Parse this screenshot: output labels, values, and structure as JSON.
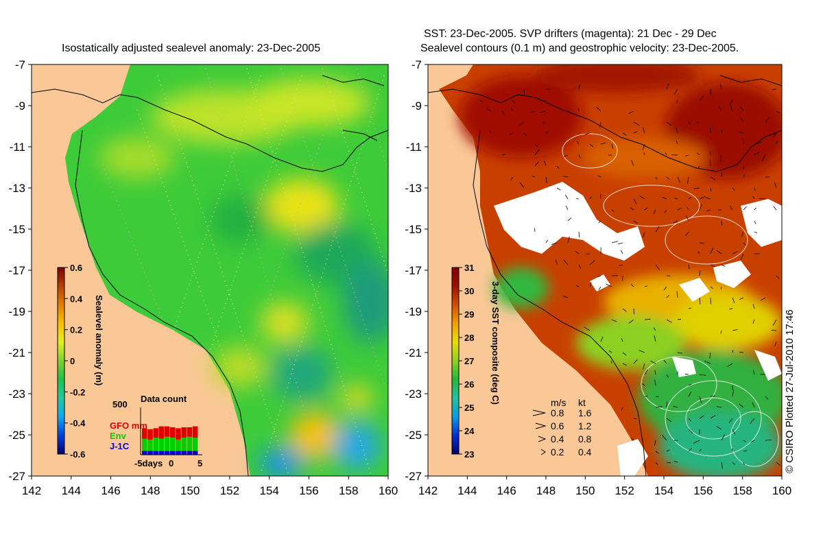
{
  "left_panel": {
    "title": "Isostatically adjusted sealevel anomaly: 23-Dec-2005",
    "colorbar": {
      "label": "Sealevel anomaly (m)",
      "min": -0.6,
      "max": 0.6,
      "ticks": [
        "0.6",
        "0.4",
        "0.2",
        "0",
        "-0.2",
        "-0.4",
        "-0.6"
      ],
      "tick_values": [
        0.6,
        0.4,
        0.2,
        0,
        -0.2,
        -0.4,
        -0.6
      ],
      "colors": [
        "#00006e",
        "#0040e0",
        "#10a8f0",
        "#20c8a0",
        "#1ec24a",
        "#80d030",
        "#e0f020",
        "#f8c000",
        "#e08000",
        "#b84000",
        "#7a0000"
      ]
    },
    "data_count": {
      "title": "Data count",
      "ymax_label": "500",
      "legend": [
        {
          "name": "GFO mm",
          "color": "#e00000"
        },
        {
          "name": "Env",
          "color": "#00d000"
        },
        {
          "name": "J-1C",
          "color": "#0000e0"
        }
      ],
      "x_labels": [
        "-5days",
        "0",
        "5"
      ],
      "bars": [
        {
          "j1c": 40,
          "env": 130,
          "gfo": 110
        },
        {
          "j1c": 40,
          "env": 120,
          "gfo": 110
        },
        {
          "j1c": 40,
          "env": 140,
          "gfo": 100
        },
        {
          "j1c": 40,
          "env": 130,
          "gfo": 130
        },
        {
          "j1c": 40,
          "env": 150,
          "gfo": 110
        },
        {
          "j1c": 40,
          "env": 140,
          "gfo": 110
        },
        {
          "j1c": 40,
          "env": 120,
          "gfo": 120
        },
        {
          "j1c": 40,
          "env": 140,
          "gfo": 110
        },
        {
          "j1c": 40,
          "env": 150,
          "gfo": 100
        },
        {
          "j1c": 40,
          "env": 140,
          "gfo": 120
        }
      ]
    }
  },
  "right_panel": {
    "title_line1": "SST: 23-Dec-2005. SVP drifters (magenta): 21 Dec - 29 Dec",
    "title_line2": "Sealevel contours (0.1 m) and geostrophic velocity: 23-Dec-2005.",
    "colorbar": {
      "label": "3-day SST composite (deg C)",
      "min": 23,
      "max": 31,
      "ticks": [
        "31",
        "30",
        "29",
        "28",
        "27",
        "26",
        "25",
        "24",
        "23"
      ],
      "tick_values": [
        31,
        30,
        29,
        28,
        27,
        26,
        25,
        24,
        23
      ],
      "colors": [
        "#000070",
        "#0030d0",
        "#00a0e8",
        "#20c0a0",
        "#20b840",
        "#90d020",
        "#e8e000",
        "#f0a000",
        "#d05000",
        "#a01000",
        "#800000"
      ]
    },
    "velocity_legend": {
      "header_ms": "m/s",
      "header_kt": "kt",
      "rows": [
        {
          "ms": "0.8",
          "kt": "1.6"
        },
        {
          "ms": "0.6",
          "kt": "1.2"
        },
        {
          "ms": "0.4",
          "kt": "0.8"
        },
        {
          "ms": "0.2",
          "kt": "0.4"
        }
      ]
    }
  },
  "axes": {
    "lon_ticks": [
      "142",
      "144",
      "146",
      "148",
      "150",
      "152",
      "154",
      "156",
      "158",
      "160"
    ],
    "lon_values": [
      142,
      144,
      146,
      148,
      150,
      152,
      154,
      156,
      158,
      160
    ],
    "lat_ticks": [
      "-7",
      "-9",
      "-11",
      "-13",
      "-15",
      "-17",
      "-19",
      "-21",
      "-23",
      "-25",
      "-27"
    ],
    "lat_values": [
      -7,
      -9,
      -11,
      -13,
      -15,
      -17,
      -19,
      -21,
      -23,
      -25,
      -27
    ],
    "lon_range": [
      142,
      160
    ],
    "lat_range": [
      -27,
      -7
    ]
  },
  "credit": "© CSIRO Plotted 27-Jul-2010 17:46",
  "colors": {
    "land": "#f9c896",
    "sst_missing": "#ffffff",
    "contour": "#ffffff",
    "coastline": "#000000"
  }
}
